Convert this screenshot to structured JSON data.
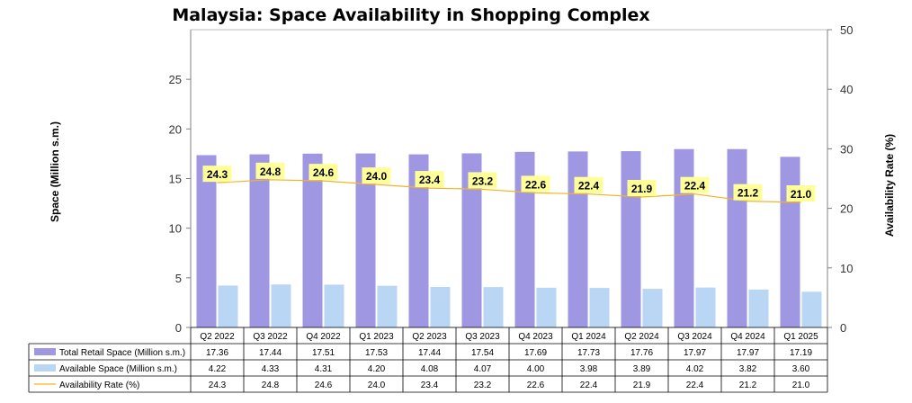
{
  "colors": {
    "total_bar": "#9f97e2",
    "available_bar": "#b9d6f5",
    "rate_line": "#f5b325",
    "label_bg": "#ffff99",
    "grid": "#d9d9d9",
    "border": "#000000"
  },
  "chart_data": {
    "type": "bar",
    "title": "Malaysia: Space Availability in Shopping Complex",
    "ylabel": "Space (Million s.m.)",
    "y2label": "Availability Rate (%)",
    "ylim": [
      0,
      30
    ],
    "y2lim": [
      0,
      50
    ],
    "yticks": [
      "0",
      "5",
      "10",
      "15",
      "20",
      "25"
    ],
    "y2ticks": [
      "0",
      "10",
      "20",
      "30",
      "40",
      "50"
    ],
    "grid": false,
    "legend": "data-table",
    "categories": [
      "Q2 2022",
      "Q3 2022",
      "Q4 2022",
      "Q1 2023",
      "Q2 2023",
      "Q3 2023",
      "Q4 2023",
      "Q1 2024",
      "Q2 2024",
      "Q3 2024",
      "Q4 2024",
      "Q1 2025"
    ],
    "series": [
      {
        "name": "Total Retail Space (Million s.m.)",
        "type": "bar",
        "axis": "left",
        "values": [
          17.36,
          17.44,
          17.51,
          17.53,
          17.44,
          17.54,
          17.69,
          17.73,
          17.76,
          17.97,
          17.97,
          17.19
        ],
        "labels": [
          "17.36",
          "17.44",
          "17.51",
          "17.53",
          "17.44",
          "17.54",
          "17.69",
          "17.73",
          "17.76",
          "17.97",
          "17.97",
          "17.19"
        ]
      },
      {
        "name": "Available Space (Million s.m.)",
        "type": "bar",
        "axis": "left",
        "values": [
          4.22,
          4.33,
          4.31,
          4.2,
          4.08,
          4.07,
          4.0,
          3.98,
          3.89,
          4.02,
          3.82,
          3.6
        ],
        "labels": [
          "4.22",
          "4.33",
          "4.31",
          "4.20",
          "4.08",
          "4.07",
          "4.00",
          "3.98",
          "3.89",
          "4.02",
          "3.82",
          "3.60"
        ]
      },
      {
        "name": "Availability Rate (%)",
        "type": "line",
        "axis": "right",
        "values": [
          24.3,
          24.8,
          24.6,
          24.0,
          23.4,
          23.2,
          22.6,
          22.4,
          21.9,
          22.4,
          21.2,
          21.0
        ],
        "labels": [
          "24.3",
          "24.8",
          "24.6",
          "24.0",
          "23.4",
          "23.2",
          "22.6",
          "22.4",
          "21.9",
          "22.4",
          "21.2",
          "21.0"
        ]
      }
    ]
  }
}
